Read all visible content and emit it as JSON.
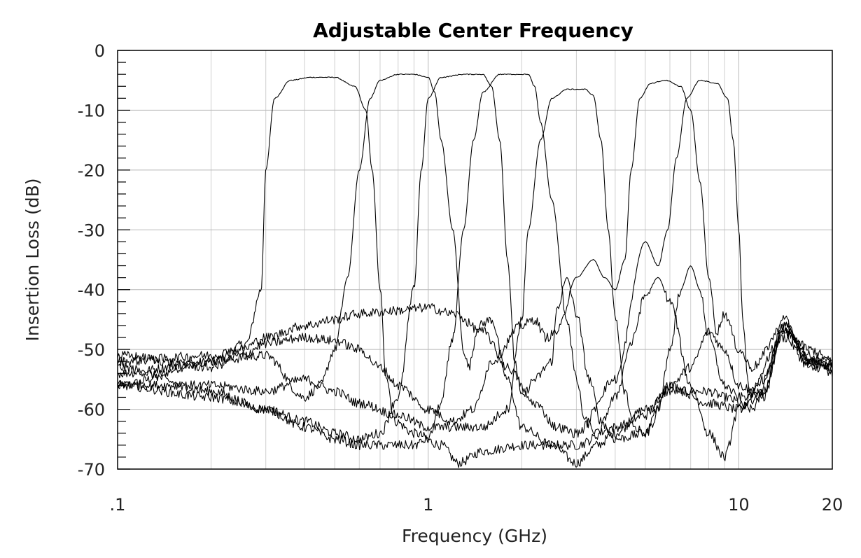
{
  "chart_data": {
    "type": "line",
    "title": "Adjustable Center Frequency",
    "xlabel": "Frequency (GHz)",
    "ylabel": "Insertion Loss (dB)",
    "x_scale": "log",
    "xlim": [
      0.1,
      20
    ],
    "ylim": [
      -70,
      0
    ],
    "x_ticks": [
      {
        "value": 0.1,
        "label": ".1"
      },
      {
        "value": 1,
        "label": "1"
      },
      {
        "value": 10,
        "label": "10"
      },
      {
        "value": 20,
        "label": "20"
      }
    ],
    "y_ticks": [
      {
        "value": 0,
        "label": "0"
      },
      {
        "value": -10,
        "label": "-10"
      },
      {
        "value": -20,
        "label": "-20"
      },
      {
        "value": -30,
        "label": "-30"
      },
      {
        "value": -40,
        "label": "-40"
      },
      {
        "value": -50,
        "label": "-50"
      },
      {
        "value": -60,
        "label": "-60"
      },
      {
        "value": -70,
        "label": "-70"
      }
    ],
    "grid": true,
    "legend": "none",
    "line_color": "#000000",
    "series": [
      {
        "points": [
          [
            0.1,
            -56
          ],
          [
            0.2,
            -52
          ],
          [
            0.26,
            -49
          ],
          [
            0.29,
            -40
          ],
          [
            0.3,
            -20
          ],
          [
            0.32,
            -8
          ],
          [
            0.36,
            -5
          ],
          [
            0.42,
            -4.5
          ],
          [
            0.5,
            -4.5
          ],
          [
            0.58,
            -6
          ],
          [
            0.63,
            -10
          ],
          [
            0.66,
            -20
          ],
          [
            0.7,
            -40
          ],
          [
            0.73,
            -54
          ],
          [
            0.78,
            -62
          ],
          [
            0.9,
            -64
          ],
          [
            1.1,
            -66
          ],
          [
            1.25,
            -69
          ],
          [
            1.5,
            -67
          ],
          [
            2,
            -66
          ],
          [
            2.5,
            -66
          ],
          [
            3,
            -69
          ],
          [
            3.5,
            -66
          ],
          [
            4,
            -64
          ],
          [
            5,
            -60
          ],
          [
            6,
            -57
          ],
          [
            8,
            -57
          ],
          [
            9,
            -58
          ],
          [
            11,
            -60
          ],
          [
            14,
            -47
          ],
          [
            17,
            -52
          ],
          [
            20,
            -52
          ]
        ]
      },
      {
        "points": [
          [
            0.1,
            -54
          ],
          [
            0.2,
            -52
          ],
          [
            0.3,
            -51
          ],
          [
            0.4,
            -58
          ],
          [
            0.45,
            -56
          ],
          [
            0.5,
            -50
          ],
          [
            0.55,
            -38
          ],
          [
            0.6,
            -20
          ],
          [
            0.65,
            -8
          ],
          [
            0.7,
            -5
          ],
          [
            0.8,
            -4
          ],
          [
            0.9,
            -4
          ],
          [
            1,
            -4.5
          ],
          [
            1.05,
            -7
          ],
          [
            1.1,
            -15
          ],
          [
            1.2,
            -30
          ],
          [
            1.3,
            -50
          ],
          [
            1.35,
            -53
          ],
          [
            1.45,
            -46
          ],
          [
            1.6,
            -45
          ],
          [
            1.8,
            -55
          ],
          [
            2,
            -63
          ],
          [
            2.5,
            -66
          ],
          [
            3,
            -66
          ],
          [
            4,
            -63
          ],
          [
            5,
            -61
          ],
          [
            6,
            -56
          ],
          [
            8,
            -59
          ],
          [
            10,
            -60
          ],
          [
            14,
            -48
          ],
          [
            17,
            -53
          ],
          [
            20,
            -53
          ]
        ]
      },
      {
        "points": [
          [
            0.1,
            -53
          ],
          [
            0.2,
            -57
          ],
          [
            0.3,
            -60
          ],
          [
            0.4,
            -62
          ],
          [
            0.5,
            -64
          ],
          [
            0.6,
            -65
          ],
          [
            0.7,
            -64
          ],
          [
            0.8,
            -58
          ],
          [
            0.9,
            -40
          ],
          [
            0.95,
            -20
          ],
          [
            1,
            -8
          ],
          [
            1.1,
            -4.5
          ],
          [
            1.3,
            -4
          ],
          [
            1.5,
            -4
          ],
          [
            1.6,
            -6
          ],
          [
            1.7,
            -15
          ],
          [
            1.8,
            -35
          ],
          [
            1.9,
            -52
          ],
          [
            2,
            -58
          ],
          [
            2.2,
            -55
          ],
          [
            2.5,
            -52
          ],
          [
            2.6,
            -43
          ],
          [
            2.8,
            -38
          ],
          [
            3,
            -44
          ],
          [
            3.3,
            -55
          ],
          [
            3.6,
            -62
          ],
          [
            4,
            -65
          ],
          [
            5,
            -64
          ],
          [
            6,
            -56
          ],
          [
            7,
            -53
          ],
          [
            8,
            -47
          ],
          [
            9,
            -50
          ],
          [
            10,
            -56
          ],
          [
            12,
            -58
          ],
          [
            14,
            -46
          ],
          [
            17,
            -51
          ],
          [
            20,
            -54
          ]
        ]
      },
      {
        "points": [
          [
            0.1,
            -56
          ],
          [
            0.2,
            -58
          ],
          [
            0.3,
            -60
          ],
          [
            0.4,
            -63
          ],
          [
            0.5,
            -65
          ],
          [
            0.6,
            -66
          ],
          [
            0.7,
            -66
          ],
          [
            0.8,
            -66
          ],
          [
            0.9,
            -66
          ],
          [
            1,
            -65
          ],
          [
            1.1,
            -59
          ],
          [
            1.2,
            -48
          ],
          [
            1.3,
            -30
          ],
          [
            1.4,
            -15
          ],
          [
            1.5,
            -7
          ],
          [
            1.7,
            -4
          ],
          [
            1.9,
            -4
          ],
          [
            2.1,
            -4
          ],
          [
            2.2,
            -6
          ],
          [
            2.3,
            -12
          ],
          [
            2.5,
            -25
          ],
          [
            2.8,
            -45
          ],
          [
            3,
            -55
          ],
          [
            3.2,
            -62
          ],
          [
            3.5,
            -64
          ],
          [
            4,
            -58
          ],
          [
            4.5,
            -49
          ],
          [
            5,
            -41
          ],
          [
            5.5,
            -38
          ],
          [
            6,
            -42
          ],
          [
            7,
            -56
          ],
          [
            8,
            -64
          ],
          [
            9,
            -68
          ],
          [
            10,
            -60
          ],
          [
            12,
            -55
          ],
          [
            14,
            -47
          ],
          [
            17,
            -50
          ],
          [
            20,
            -52
          ]
        ]
      },
      {
        "points": [
          [
            0.1,
            -56
          ],
          [
            0.2,
            -56
          ],
          [
            0.3,
            -57
          ],
          [
            0.4,
            -55
          ],
          [
            0.5,
            -57
          ],
          [
            0.6,
            -59
          ],
          [
            0.8,
            -61
          ],
          [
            1,
            -63
          ],
          [
            1.5,
            -63
          ],
          [
            1.8,
            -60
          ],
          [
            2,
            -45
          ],
          [
            2.1,
            -30
          ],
          [
            2.3,
            -15
          ],
          [
            2.5,
            -8
          ],
          [
            2.8,
            -6.5
          ],
          [
            3.2,
            -6.5
          ],
          [
            3.4,
            -7.5
          ],
          [
            3.6,
            -15
          ],
          [
            3.8,
            -30
          ],
          [
            4,
            -45
          ],
          [
            4.3,
            -57
          ],
          [
            4.6,
            -63
          ],
          [
            5,
            -64
          ],
          [
            5.5,
            -60
          ],
          [
            6,
            -50
          ],
          [
            6.5,
            -40
          ],
          [
            7,
            -36
          ],
          [
            7.5,
            -40
          ],
          [
            8,
            -48
          ],
          [
            9,
            -56
          ],
          [
            10,
            -58
          ],
          [
            12,
            -57
          ],
          [
            14,
            -45
          ],
          [
            17,
            -53
          ],
          [
            20,
            -52
          ]
        ]
      },
      {
        "points": [
          [
            0.1,
            -51
          ],
          [
            0.2,
            -53
          ],
          [
            0.25,
            -51
          ],
          [
            0.3,
            -49
          ],
          [
            0.4,
            -48
          ],
          [
            0.5,
            -48.5
          ],
          [
            0.6,
            -50
          ],
          [
            0.7,
            -53
          ],
          [
            0.8,
            -56
          ],
          [
            1,
            -60
          ],
          [
            1.2,
            -62
          ],
          [
            1.4,
            -60
          ],
          [
            1.6,
            -52
          ],
          [
            2,
            -46
          ],
          [
            2.2,
            -45
          ],
          [
            2.4,
            -48
          ],
          [
            2.6,
            -47
          ],
          [
            3,
            -38
          ],
          [
            3.4,
            -35
          ],
          [
            3.7,
            -38
          ],
          [
            4,
            -40
          ],
          [
            4.3,
            -35
          ],
          [
            4.5,
            -20
          ],
          [
            4.8,
            -8
          ],
          [
            5.2,
            -5.5
          ],
          [
            5.8,
            -5
          ],
          [
            6.5,
            -6
          ],
          [
            7,
            -10
          ],
          [
            7.5,
            -22
          ],
          [
            8,
            -38
          ],
          [
            8.5,
            -47
          ],
          [
            9,
            -44
          ],
          [
            10,
            -50
          ],
          [
            11,
            -53
          ],
          [
            14,
            -46
          ],
          [
            17,
            -52
          ],
          [
            20,
            -53
          ]
        ]
      },
      {
        "points": [
          [
            0.1,
            -52
          ],
          [
            0.2,
            -51
          ],
          [
            0.25,
            -50
          ],
          [
            0.3,
            -48
          ],
          [
            0.4,
            -46
          ],
          [
            0.5,
            -45
          ],
          [
            0.6,
            -44
          ],
          [
            0.8,
            -43.5
          ],
          [
            1,
            -43
          ],
          [
            1.2,
            -44
          ],
          [
            1.5,
            -47
          ],
          [
            1.8,
            -53
          ],
          [
            2.2,
            -59
          ],
          [
            2.6,
            -63
          ],
          [
            3,
            -64
          ],
          [
            4,
            -55
          ],
          [
            5,
            -32
          ],
          [
            5.5,
            -36
          ],
          [
            5.9,
            -30
          ],
          [
            6.3,
            -18
          ],
          [
            6.8,
            -8
          ],
          [
            7.5,
            -5
          ],
          [
            8.5,
            -5.5
          ],
          [
            9.2,
            -8
          ],
          [
            9.6,
            -15
          ],
          [
            10,
            -30
          ],
          [
            10.3,
            -45
          ],
          [
            10.7,
            -55
          ],
          [
            11,
            -59
          ],
          [
            12,
            -57
          ],
          [
            14,
            -47
          ],
          [
            17,
            -52
          ],
          [
            20,
            -53
          ]
        ]
      }
    ]
  }
}
